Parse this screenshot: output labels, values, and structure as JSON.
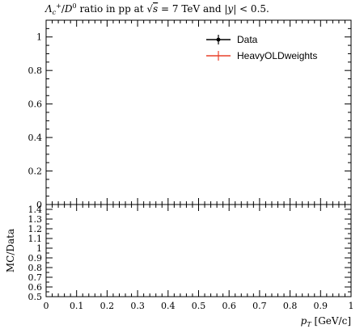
{
  "chart_data": [
    {
      "type": "line",
      "title": "Λc+/D0 ratio in pp at √s = 7 TeV and |y| < 0.5.",
      "xlabel": "",
      "ylabel": "",
      "xlim": [
        0,
        1
      ],
      "ylim": [
        0,
        1.1
      ],
      "yticks": [
        "0",
        "0.2",
        "0.4",
        "0.6",
        "0.8",
        "1"
      ],
      "legend_position": "top-right",
      "grid": false,
      "series": [
        {
          "name": "Data",
          "color": "#000000",
          "x": [],
          "y": []
        },
        {
          "name": "HeavyOLDweights",
          "color": "#e8402a",
          "x": [],
          "y": []
        }
      ]
    },
    {
      "type": "line",
      "title": "",
      "xlabel": "pT [GeV/c]",
      "ylabel": "MC/Data",
      "xlim": [
        0,
        1
      ],
      "ylim": [
        0.5,
        1.45
      ],
      "xticks": [
        "0",
        "0.1",
        "0.2",
        "0.3",
        "0.4",
        "0.5",
        "0.6",
        "0.7",
        "0.8",
        "0.9",
        "1"
      ],
      "yticks": [
        "0.5",
        "0.6",
        "0.7",
        "0.8",
        "0.9",
        "1",
        "1.1",
        "1.2",
        "1.3",
        "1.4"
      ],
      "grid": false,
      "series": []
    }
  ]
}
